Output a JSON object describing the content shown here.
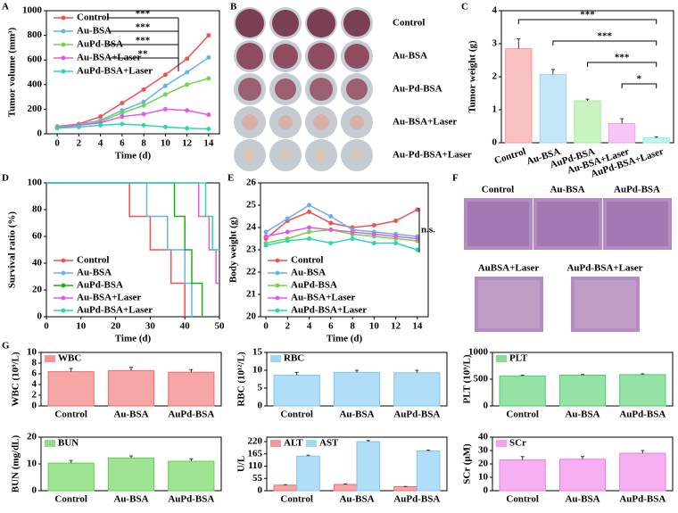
{
  "chart_data": [
    {
      "type": "line",
      "panel": "A",
      "xlabel": "Time (d)",
      "ylabel": "Tumor volume (mm³)",
      "x": [
        0,
        2,
        4,
        6,
        8,
        10,
        12,
        14
      ],
      "xlim": [
        -1,
        15
      ],
      "xticks": [
        0,
        2,
        4,
        6,
        8,
        10,
        12,
        14
      ],
      "ylim": [
        0,
        1000
      ],
      "yticks": [
        0,
        200,
        400,
        600,
        800,
        1000
      ],
      "legend": "upper left",
      "series": [
        {
          "name": "Control",
          "color": "#f0524f",
          "values": [
            60,
            80,
            140,
            250,
            360,
            480,
            610,
            800
          ]
        },
        {
          "name": "Au-BSA",
          "color": "#64b4e6",
          "values": [
            55,
            75,
            110,
            190,
            260,
            390,
            500,
            620
          ]
        },
        {
          "name": "AuPd-BSA",
          "color": "#6fd64a",
          "values": [
            55,
            70,
            100,
            170,
            230,
            320,
            400,
            450
          ]
        },
        {
          "name": "Au-BSA+Laser",
          "color": "#e45ae4",
          "values": [
            50,
            70,
            90,
            140,
            160,
            200,
            190,
            155
          ]
        },
        {
          "name": "AuPd-BSA+Laser",
          "color": "#2bd9b0",
          "values": [
            45,
            55,
            70,
            80,
            70,
            55,
            45,
            40
          ]
        }
      ],
      "annotations": [
        "***",
        "***",
        "***",
        "**"
      ]
    },
    {
      "type": "image",
      "panel": "B",
      "labels": [
        "Control",
        "Au-BSA",
        "Au-Pd-BSA",
        "Au-BSA+Laser",
        "Au-Pd-BSA+Laser"
      ]
    },
    {
      "type": "bar",
      "panel": "C",
      "ylabel": "Tumor weight (g)",
      "categories": [
        "Control",
        "Au-BSA",
        "AuPd-BSA",
        "Au-BSA+Laser",
        "AuPd-BSA+Laser"
      ],
      "values": [
        2.85,
        2.07,
        1.27,
        0.58,
        0.15
      ],
      "errors": [
        0.3,
        0.15,
        0.05,
        0.15,
        0.03
      ],
      "colors": [
        "#f59a9a",
        "#9fd3f5",
        "#a6eb9a",
        "#f0a2f0",
        "#98eedb"
      ],
      "ylim": [
        0,
        4
      ],
      "yticks": [
        0,
        1,
        2,
        3,
        4
      ],
      "annotations": [
        "***",
        "***",
        "***",
        "*"
      ]
    },
    {
      "type": "step",
      "panel": "D",
      "xlabel": "Time (d)",
      "ylabel": "Survival ratio (%)",
      "xlim": [
        0,
        50
      ],
      "xticks": [
        0,
        10,
        20,
        30,
        40,
        50
      ],
      "ylim": [
        0,
        100
      ],
      "yticks": [
        0,
        20,
        40,
        60,
        80,
        100
      ],
      "legend": "lower left",
      "series": [
        {
          "name": "Control",
          "color": "#f0524f",
          "x": [
            0,
            24,
            30,
            36,
            40
          ],
          "values": [
            100,
            75,
            50,
            25,
            0
          ]
        },
        {
          "name": "Au-BSA",
          "color": "#64b4e6",
          "x": [
            0,
            29,
            35,
            40,
            42
          ],
          "values": [
            100,
            75,
            50,
            25,
            0
          ]
        },
        {
          "name": "AuPd-BSA",
          "color": "#1fae12",
          "x": [
            0,
            37,
            40,
            42,
            45
          ],
          "values": [
            100,
            75,
            50,
            25,
            0
          ]
        },
        {
          "name": "Au-BSA+Laser",
          "color": "#e45ae4",
          "x": [
            0,
            44,
            47,
            49,
            50
          ],
          "values": [
            100,
            75,
            50,
            25,
            25
          ]
        },
        {
          "name": "AuPd-BSA+Laser",
          "color": "#2bd9b0",
          "x": [
            0,
            46,
            48,
            50
          ],
          "values": [
            100,
            75,
            50,
            50
          ]
        }
      ]
    },
    {
      "type": "line",
      "panel": "E",
      "xlabel": "Time (d)",
      "ylabel": "Body weight (g)",
      "x": [
        0,
        2,
        4,
        6,
        8,
        10,
        12,
        14
      ],
      "xlim": [
        -0.5,
        15
      ],
      "xticks": [
        0,
        2,
        4,
        6,
        8,
        10,
        12,
        14
      ],
      "ylim": [
        20,
        26
      ],
      "yticks": [
        20,
        21,
        22,
        23,
        24,
        25,
        26
      ],
      "legend": "lower left",
      "series": [
        {
          "name": "Control",
          "color": "#f0524f",
          "values": [
            23.5,
            24.3,
            24.7,
            24.2,
            24.0,
            24.1,
            24.3,
            24.8
          ]
        },
        {
          "name": "Au-BSA",
          "color": "#64b4e6",
          "values": [
            23.8,
            24.4,
            25.0,
            24.5,
            23.9,
            23.8,
            23.7,
            23.6
          ]
        },
        {
          "name": "AuPd-BSA",
          "color": "#6fd64a",
          "values": [
            23.3,
            23.5,
            23.8,
            23.9,
            23.7,
            23.6,
            23.5,
            23.4
          ]
        },
        {
          "name": "Au-BSA+Laser",
          "color": "#e45ae4",
          "values": [
            23.6,
            23.8,
            24.0,
            23.9,
            23.8,
            23.7,
            23.6,
            23.5
          ]
        },
        {
          "name": "AuPd-BSA+Laser",
          "color": "#2bd9b0",
          "values": [
            23.2,
            23.4,
            23.5,
            23.3,
            23.5,
            23.3,
            23.3,
            23.0
          ]
        }
      ],
      "annotations": [
        "n.s."
      ]
    },
    {
      "type": "image",
      "panel": "F",
      "labels": [
        "Control",
        "Au-BSA",
        "AuPd-BSA",
        "AuBSA+Laser",
        "AuPd-BSA+Laser"
      ]
    },
    {
      "type": "bar",
      "panel": "G",
      "ylabel": "WBC (10⁹/L)",
      "categories": [
        "Control",
        "Au-BSA",
        "AuPd-BSA"
      ],
      "ylim": [
        0,
        10
      ],
      "yticks": [
        0,
        2,
        4,
        6,
        8,
        10
      ],
      "series": [
        {
          "name": "WBC",
          "color": "#f26b6b",
          "values": [
            6.4,
            6.6,
            6.3
          ],
          "errors": [
            0.6,
            0.6,
            0.5
          ]
        }
      ]
    },
    {
      "type": "bar",
      "ylabel": "RBC (10¹²/L)",
      "categories": [
        "Control",
        "Au-BSA",
        "AuPd-BSA"
      ],
      "ylim": [
        0,
        15
      ],
      "yticks": [
        0,
        5,
        10,
        15
      ],
      "series": [
        {
          "name": "RBC",
          "color": "#7cc6f2",
          "values": [
            8.6,
            9.4,
            9.3
          ],
          "errors": [
            0.8,
            0.6,
            0.7
          ]
        }
      ]
    },
    {
      "type": "bar",
      "ylabel": "PLT (10⁹/L)",
      "categories": [
        "Control",
        "Au-BSA",
        "AuPd-BSA"
      ],
      "ylim": [
        0,
        1000
      ],
      "yticks": [
        0,
        500,
        1000
      ],
      "series": [
        {
          "name": "PLT",
          "color": "#4fcf6a",
          "values": [
            560,
            575,
            585
          ],
          "errors": [
            15,
            12,
            15
          ]
        }
      ]
    },
    {
      "type": "bar",
      "ylabel": "BUN (mg/dL)",
      "categories": [
        "Control",
        "Au-BSA",
        "AuPd-BSA"
      ],
      "ylim": [
        0,
        20
      ],
      "yticks": [
        0,
        10,
        20
      ],
      "series": [
        {
          "name": "BUN",
          "color": "#5fd24a",
          "values": [
            10.3,
            12.2,
            11.0
          ],
          "errors": [
            1.0,
            0.8,
            0.9
          ]
        }
      ]
    },
    {
      "type": "bar",
      "ylabel": "U/L",
      "categories": [
        "Control",
        "Au-BSA",
        "AuPd-BSA"
      ],
      "ylim": [
        0,
        240
      ],
      "yticks": [
        0,
        55,
        110,
        165,
        220
      ],
      "series": [
        {
          "name": "ALT",
          "color": "#f26b6b",
          "values": [
            25,
            28,
            18
          ],
          "errors": [
            2,
            2,
            1
          ]
        },
        {
          "name": "AST",
          "color": "#7cc6f2",
          "values": [
            155,
            220,
            178
          ],
          "errors": [
            4,
            5,
            4
          ]
        }
      ]
    },
    {
      "type": "bar",
      "ylabel": "SCr (μM)",
      "categories": [
        "Control",
        "Au-BSA",
        "AuPd-BSA"
      ],
      "ylim": [
        0,
        40
      ],
      "yticks": [
        0,
        10,
        20,
        30,
        40
      ],
      "series": [
        {
          "name": "SCr",
          "color": "#f07ae8",
          "values": [
            23,
            23.5,
            28
          ],
          "errors": [
            2.5,
            2,
            2
          ]
        }
      ]
    }
  ]
}
